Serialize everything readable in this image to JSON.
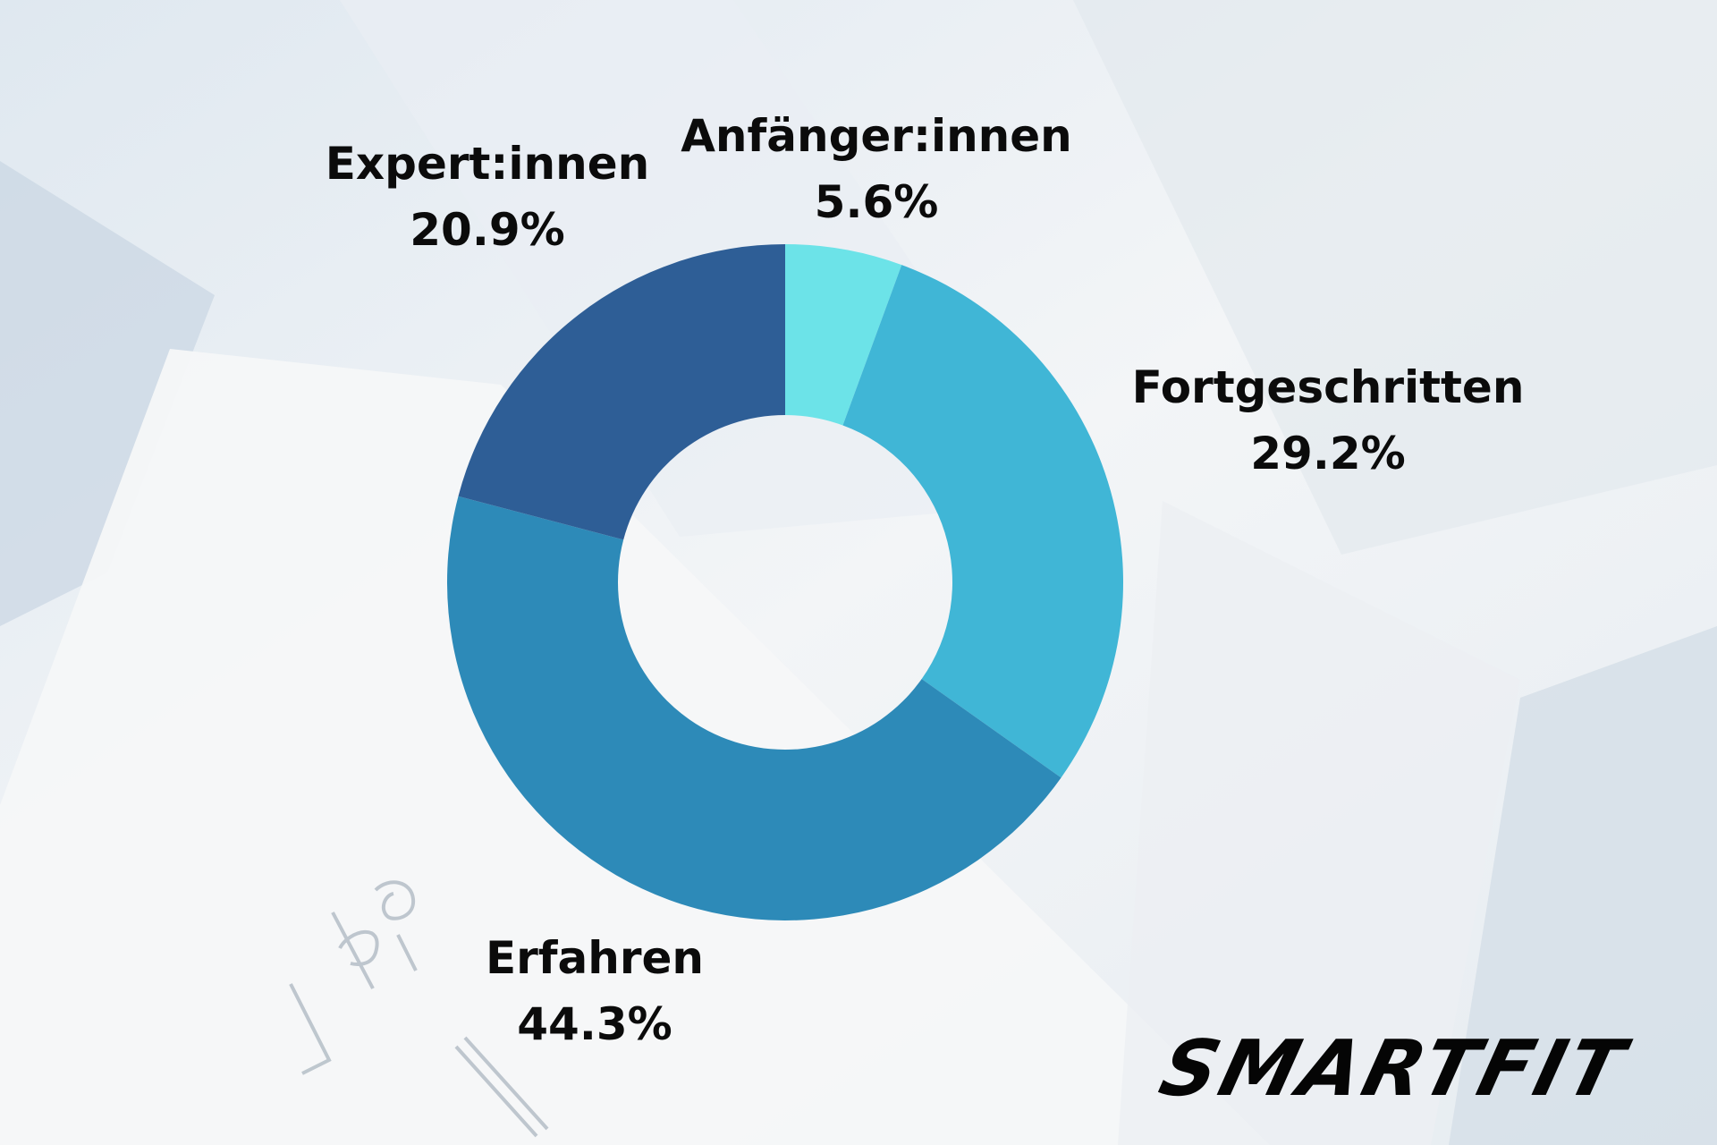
{
  "chart_data": {
    "type": "pie",
    "donut": true,
    "slices": [
      {
        "label": "Anfänger:innen",
        "value": 5.6,
        "value_label": "5.6%",
        "color": "#6ce3e8"
      },
      {
        "label": "Fortgeschritten",
        "value": 29.2,
        "value_label": "29.2%",
        "color": "#40b6d6"
      },
      {
        "label": "Erfahren",
        "value": 44.3,
        "value_label": "44.3%",
        "color": "#2d8ab8"
      },
      {
        "label": "Expert:innen",
        "value": 20.9,
        "value_label": "20.9%",
        "color": "#2e5e96"
      }
    ],
    "legend": "none"
  },
  "brand": {
    "logo_text": "SMARTFIT"
  }
}
